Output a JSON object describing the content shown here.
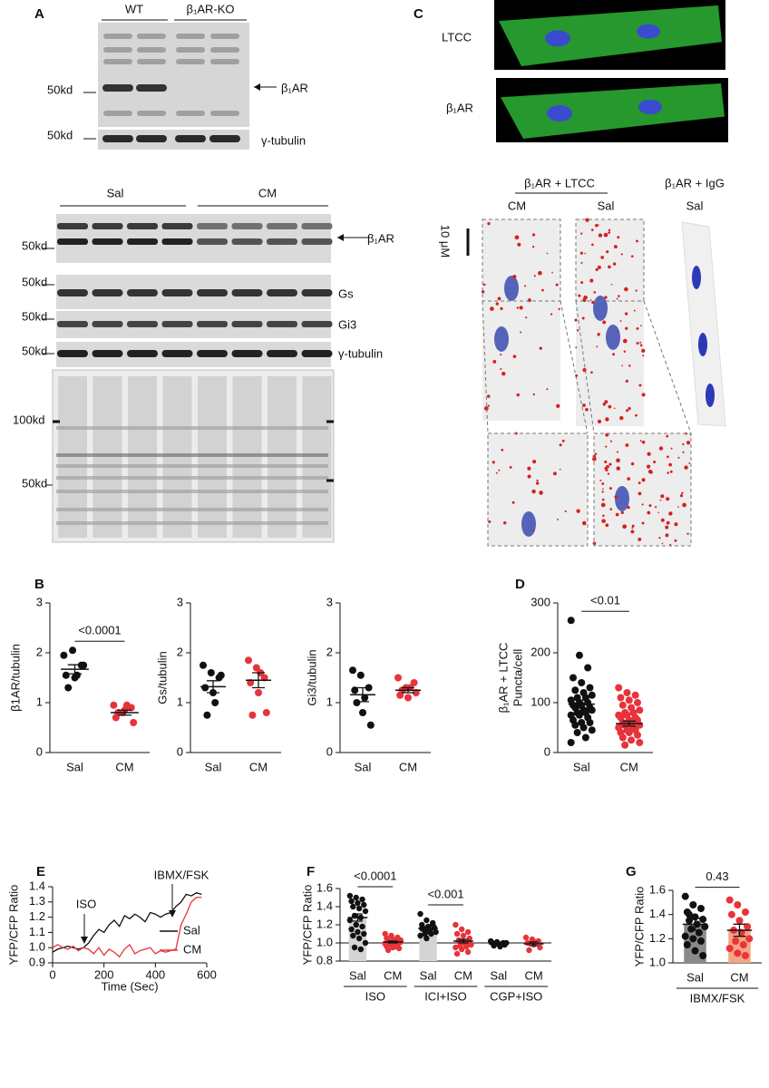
{
  "panels": {
    "letters": [
      "A",
      "B",
      "C",
      "D",
      "E",
      "F",
      "G"
    ],
    "a_top": {
      "groups": [
        "WT",
        "β₁AR-KO"
      ],
      "markers": [
        "50kd",
        "50kd"
      ],
      "bands": [
        "β₁AR",
        "γ-tubulin"
      ]
    },
    "a_bottom": {
      "groups": [
        "Sal",
        "CM"
      ],
      "markers": [
        "50kd",
        "50kd",
        "50kd",
        "50kd",
        "100kd",
        "50kd"
      ],
      "bands": [
        "β₁AR",
        "Gs",
        "Gi3",
        "γ-tubulin"
      ]
    },
    "c": {
      "rows": [
        "LTCC",
        "β₁AR"
      ],
      "groups": [
        "β₁AR + LTCC",
        "β₁AR + IgG"
      ],
      "columns": [
        "CM",
        "Sal",
        "Sal"
      ],
      "scale": "10 μM"
    }
  },
  "chart_data": [
    {
      "type": "dot",
      "y_label": "β1AR/tubulin",
      "ylim": [
        0,
        3
      ],
      "yticks": [
        0,
        1,
        2,
        3
      ],
      "comparisons": [
        "<0.0001"
      ],
      "series": [
        {
          "name": "Sal",
          "color": "#111111",
          "values": [
            1.95,
            2.05,
            1.75,
            1.55,
            1.5,
            1.75,
            1.3,
            1.55
          ],
          "mean": 1.67,
          "sem": 0.09
        },
        {
          "name": "CM",
          "color": "#e8333a",
          "values": [
            0.95,
            0.8,
            0.9,
            0.7,
            0.85,
            0.6,
            0.8,
            0.95
          ],
          "mean": 0.8,
          "sem": 0.05
        }
      ]
    },
    {
      "type": "dot",
      "y_label": "Gs/tubulin",
      "ylim": [
        0,
        3
      ],
      "yticks": [
        0,
        1,
        2,
        3
      ],
      "comparisons": [],
      "series": [
        {
          "name": "Sal",
          "color": "#111111",
          "values": [
            1.75,
            1.6,
            1.5,
            1.3,
            1.2,
            1.55,
            0.75,
            1.0
          ],
          "mean": 1.32,
          "sem": 0.12
        },
        {
          "name": "CM",
          "color": "#e8333a",
          "values": [
            1.85,
            1.7,
            1.5,
            1.4,
            1.2,
            0.8,
            0.75,
            1.6
          ],
          "mean": 1.45,
          "sem": 0.15
        }
      ]
    },
    {
      "type": "dot",
      "y_label": "Gi3/tubulin",
      "ylim": [
        0,
        3
      ],
      "yticks": [
        0,
        1,
        2,
        3
      ],
      "comparisons": [],
      "series": [
        {
          "name": "Sal",
          "color": "#111111",
          "values": [
            1.65,
            1.55,
            1.3,
            1.25,
            0.8,
            0.55,
            1.0,
            1.1
          ],
          "mean": 1.16,
          "sem": 0.14
        },
        {
          "name": "CM",
          "color": "#e8333a",
          "values": [
            1.5,
            1.3,
            1.4,
            1.15,
            1.1,
            1.2,
            1.25,
            1.3
          ],
          "mean": 1.25,
          "sem": 0.05
        }
      ]
    },
    {
      "type": "dot",
      "y_label": [
        "β₁AR + LTCC",
        "Puncta/cell"
      ],
      "ylim": [
        0,
        300
      ],
      "yticks": [
        0,
        100,
        200,
        300
      ],
      "comparisons": [
        "<0.01"
      ],
      "series": [
        {
          "name": "Sal",
          "color": "#111111",
          "values": [
            265,
            195,
            170,
            150,
            140,
            130,
            125,
            120,
            115,
            110,
            110,
            105,
            100,
            100,
            95,
            95,
            90,
            90,
            85,
            85,
            80,
            80,
            75,
            75,
            70,
            65,
            60,
            60,
            55,
            50,
            45,
            40,
            30,
            20
          ],
          "mean": 97,
          "sem": 8
        },
        {
          "name": "CM",
          "color": "#e8333a",
          "values": [
            130,
            120,
            115,
            110,
            105,
            100,
            95,
            90,
            85,
            80,
            80,
            75,
            75,
            70,
            70,
            65,
            65,
            60,
            60,
            55,
            55,
            50,
            50,
            45,
            45,
            40,
            40,
            35,
            30,
            25,
            20,
            15
          ],
          "mean": 58,
          "sem": 5
        }
      ]
    },
    {
      "type": "line",
      "y_label": "YFP/CFP Ratio",
      "x_label": "Time (Sec)",
      "xlim": [
        0,
        600
      ],
      "xticks": [
        0,
        200,
        400,
        600
      ],
      "ylim": [
        0.9,
        1.4
      ],
      "yticks": [
        0.9,
        {
          "value": 1,
          "label": "1.0"
        },
        1.1,
        1.2,
        1.3,
        1.4
      ],
      "annotations": [
        "ISO",
        "IBMX/FSK"
      ],
      "x": [
        0,
        20,
        40,
        60,
        80,
        100,
        120,
        140,
        160,
        180,
        200,
        220,
        240,
        260,
        280,
        300,
        320,
        340,
        360,
        380,
        400,
        420,
        440,
        460,
        480,
        500,
        520,
        540,
        560,
        580
      ],
      "series": [
        {
          "name": "Sal",
          "color": "#111111",
          "values": [
            0.97,
            0.99,
            1.0,
            1.01,
            1.0,
            0.99,
            1.0,
            1.03,
            1.08,
            1.12,
            1.1,
            1.15,
            1.18,
            1.14,
            1.21,
            1.19,
            1.22,
            1.2,
            1.17,
            1.23,
            1.22,
            1.2,
            1.22,
            1.23,
            1.27,
            1.3,
            1.35,
            1.34,
            1.36,
            1.35
          ]
        },
        {
          "name": "CM",
          "color": "#e8333a",
          "values": [
            1.0,
            1.02,
            1.0,
            0.99,
            1.01,
            0.98,
            1.0,
            0.99,
            0.96,
            1.0,
            0.95,
            0.99,
            0.97,
            0.94,
            0.99,
            1.02,
            0.96,
            0.98,
            0.99,
            1.0,
            0.96,
            0.98,
            0.97,
            0.98,
            0.99,
            1.15,
            1.22,
            1.3,
            1.33,
            1.33
          ]
        }
      ]
    },
    {
      "type": "dot",
      "y_label": "YFP/CFP Ratio",
      "ylim": [
        0.8,
        1.6
      ],
      "yticks": [
        0.8,
        {
          "value": 1,
          "label": "1.0"
        },
        1.2,
        1.4,
        1.6
      ],
      "hline": 1,
      "comparisons": [
        "<0.0001",
        "<0.001"
      ],
      "groups": [
        "ISO",
        "ICI+ISO",
        "CGP+ISO"
      ],
      "series": [
        {
          "name": "Sal",
          "color": "#111111",
          "bar_color": "#d4d4d4",
          "values": [
            1.52,
            1.5,
            1.48,
            1.46,
            1.44,
            1.42,
            1.4,
            1.38,
            1.35,
            1.3,
            1.28,
            1.25,
            1.2,
            1.18,
            1.15,
            1.12,
            1.1,
            1.08,
            1.05,
            1.0,
            0.95,
            0.93
          ],
          "mean": 1.28,
          "sem": 0.04
        },
        {
          "name": "CM",
          "color": "#e8333a",
          "values": [
            1.1,
            1.08,
            1.06,
            1.05,
            1.04,
            1.03,
            1.02,
            1.02,
            1.01,
            1.0,
            1.0,
            0.99,
            0.98,
            0.97,
            0.96,
            0.95,
            0.94,
            0.92,
            1.01,
            1.03,
            0.99,
            0.96
          ],
          "mean": 1.01,
          "sem": 0.01
        },
        {
          "name": "Sal",
          "color": "#111111",
          "bar_color": "#d4d4d4",
          "values": [
            1.32,
            1.25,
            1.22,
            1.2,
            1.18,
            1.17,
            1.15,
            1.14,
            1.12,
            1.1,
            1.1,
            1.08,
            1.05,
            1.2,
            1.16,
            1.13
          ],
          "mean": 1.16,
          "sem": 0.02
        },
        {
          "name": "CM",
          "color": "#e8333a",
          "values": [
            1.2,
            1.15,
            1.12,
            1.1,
            1.08,
            1.05,
            1.03,
            1.0,
            0.98,
            0.97,
            0.96,
            0.95,
            0.93,
            0.9,
            0.88,
            1.02,
            1.0
          ],
          "mean": 1.02,
          "sem": 0.02
        },
        {
          "name": "Sal",
          "color": "#111111",
          "values": [
            1.02,
            1.01,
            1.0,
            1.0,
            0.99,
            0.98,
            0.97,
            0.96,
            1.0,
            0.99
          ],
          "mean": 0.99,
          "sem": 0.01
        },
        {
          "name": "CM",
          "color": "#e8333a",
          "values": [
            1.06,
            1.04,
            1.02,
            1.0,
            0.98,
            0.95,
            0.92,
            1.01
          ],
          "mean": 0.99,
          "sem": 0.02
        }
      ]
    },
    {
      "type": "dot",
      "y_label": "YFP/CFP Ratio",
      "ylim": [
        1.0,
        1.6
      ],
      "yticks": [
        {
          "value": 1,
          "label": "1.0"
        },
        1.2,
        1.4,
        1.6
      ],
      "comparisons": [
        "0.43"
      ],
      "groups": [
        "IBMX/FSK"
      ],
      "series": [
        {
          "name": "Sal",
          "color": "#111111",
          "bar_color": "#8a8a8a",
          "values": [
            1.55,
            1.48,
            1.45,
            1.42,
            1.38,
            1.36,
            1.35,
            1.32,
            1.3,
            1.28,
            1.25,
            1.22,
            1.2,
            1.18,
            1.15,
            1.1,
            1.06,
            1.4
          ],
          "mean": 1.32,
          "sem": 0.05
        },
        {
          "name": "CM",
          "color": "#e8333a",
          "bar_color": "#f4a582",
          "values": [
            1.52,
            1.48,
            1.42,
            1.4,
            1.35,
            1.3,
            1.27,
            1.25,
            1.2,
            1.18,
            1.15,
            1.12,
            1.08,
            1.06
          ],
          "mean": 1.27,
          "sem": 0.05
        }
      ]
    }
  ]
}
